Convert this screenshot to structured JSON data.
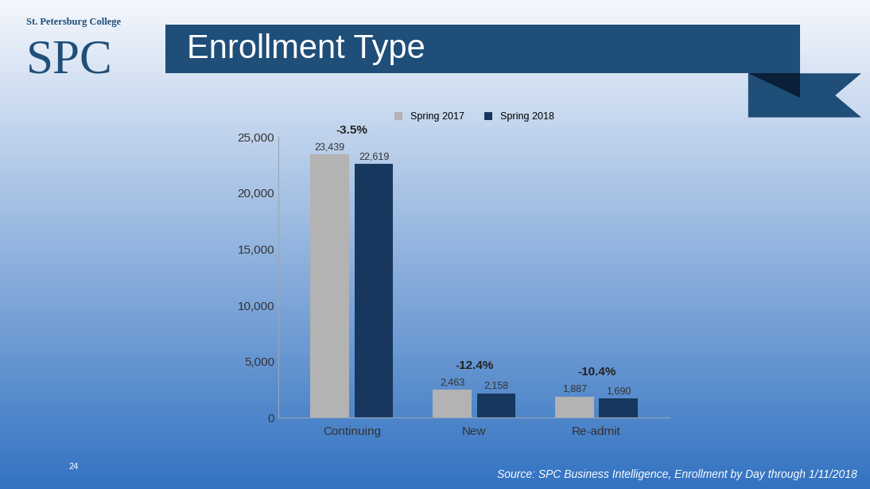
{
  "header": {
    "college": "St. Petersburg College",
    "logo": "SPC"
  },
  "chart_data": {
    "type": "bar",
    "title": "Enrollment Type",
    "categories": [
      "Continuing",
      "New",
      "Re-admit"
    ],
    "series": [
      {
        "name": "Spring 2017",
        "color": "#b3b3b3",
        "values": [
          23439,
          2463,
          1887
        ],
        "value_labels": [
          "23,439",
          "2,463",
          "1,887"
        ]
      },
      {
        "name": "Spring 2018",
        "color": "#17375e",
        "values": [
          22619,
          2158,
          1690
        ],
        "value_labels": [
          "22,619",
          "2,158",
          "1,690"
        ]
      }
    ],
    "annotations": [
      "-3.5%",
      "-12.4%",
      "-10.4%"
    ],
    "ylim": [
      0,
      25000
    ],
    "yticks": [
      0,
      {
        "value": 5000,
        "label": "5,000"
      },
      {
        "value": 10000,
        "label": "10,000"
      },
      {
        "value": 15000,
        "label": "15,000"
      },
      {
        "value": 20000,
        "label": "20,000"
      },
      {
        "value": 25000,
        "label": "25,000"
      }
    ],
    "grid": false,
    "legend": "upper center",
    "data_labels": true
  },
  "footer": {
    "page": "24",
    "source": "Source: SPC Business Intelligence, Enrollment by Day through 1/11/2018"
  }
}
